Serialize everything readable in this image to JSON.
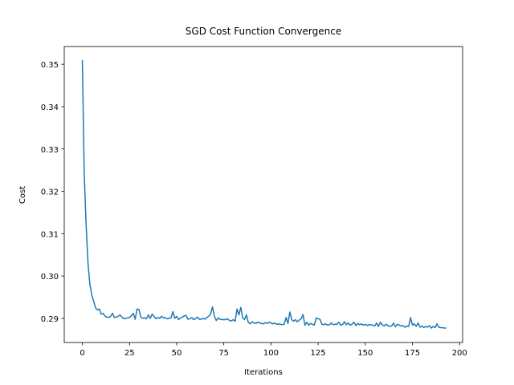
{
  "chart_data": {
    "type": "line",
    "title": "SGD Cost Function Convergence",
    "x_label": "Iterations",
    "y_label": "Cost",
    "series": [
      {
        "color": "#1f77b4",
        "values": [
          0.351,
          0.324,
          0.312,
          0.303,
          0.298,
          0.2955,
          0.294,
          0.2925,
          0.292,
          0.2922,
          0.291,
          0.2912,
          0.2905,
          0.2903,
          0.2902,
          0.2905,
          0.2912,
          0.2902,
          0.2903,
          0.2905,
          0.2908,
          0.2903,
          0.2899,
          0.29,
          0.2901,
          0.2902,
          0.2906,
          0.2912,
          0.2898,
          0.2922,
          0.2921,
          0.2903,
          0.29,
          0.2901,
          0.2899,
          0.2908,
          0.29,
          0.291,
          0.2905,
          0.2899,
          0.2902,
          0.29,
          0.2905,
          0.2901,
          0.2902,
          0.2899,
          0.29,
          0.2901,
          0.2916,
          0.29,
          0.2905,
          0.2897,
          0.2901,
          0.2903,
          0.2906,
          0.2907,
          0.2898,
          0.2899,
          0.2902,
          0.2897,
          0.2899,
          0.2903,
          0.2898,
          0.2898,
          0.29,
          0.2898,
          0.2902,
          0.2905,
          0.291,
          0.2927,
          0.2905,
          0.2895,
          0.2901,
          0.2898,
          0.2897,
          0.2897,
          0.2897,
          0.2899,
          0.2895,
          0.2894,
          0.2897,
          0.2893,
          0.2922,
          0.2908,
          0.2926,
          0.2901,
          0.2897,
          0.2908,
          0.289,
          0.2887,
          0.2892,
          0.2889,
          0.2888,
          0.2891,
          0.2889,
          0.2888,
          0.2887,
          0.289,
          0.2888,
          0.2891,
          0.2889,
          0.2887,
          0.2889,
          0.2886,
          0.2887,
          0.2886,
          0.2885,
          0.2886,
          0.2902,
          0.2888,
          0.2915,
          0.2897,
          0.2893,
          0.2897,
          0.2892,
          0.2896,
          0.2899,
          0.2909,
          0.2884,
          0.2891,
          0.2884,
          0.2888,
          0.2886,
          0.2884,
          0.2901,
          0.2899,
          0.2898,
          0.2886,
          0.2885,
          0.2887,
          0.2884,
          0.2885,
          0.2889,
          0.2885,
          0.2886,
          0.2886,
          0.2891,
          0.2884,
          0.2886,
          0.2892,
          0.2885,
          0.2889,
          0.2884,
          0.2886,
          0.2891,
          0.2883,
          0.2888,
          0.2885,
          0.2887,
          0.2884,
          0.2886,
          0.2883,
          0.2885,
          0.2885,
          0.2884,
          0.2882,
          0.2889,
          0.2881,
          0.2891,
          0.2885,
          0.2882,
          0.2886,
          0.2883,
          0.2881,
          0.2882,
          0.2889,
          0.288,
          0.2886,
          0.2884,
          0.2882,
          0.2883,
          0.2879,
          0.2882,
          0.2881,
          0.2902,
          0.2884,
          0.2887,
          0.2881,
          0.2889,
          0.2879,
          0.2882,
          0.2878,
          0.2881,
          0.2879,
          0.2883,
          0.2877,
          0.2881,
          0.2878,
          0.2887,
          0.2879,
          0.2878,
          0.2878,
          0.2877,
          0.2877
        ]
      }
    ],
    "xlim": [
      -9.6,
      201.6
    ],
    "ylim": [
      0.2843,
      0.3542
    ],
    "xticks": [
      0,
      25,
      50,
      75,
      100,
      125,
      150,
      175,
      200
    ],
    "yticks": [
      {
        "value": 0.29,
        "label": "0.29"
      },
      {
        "value": 0.3,
        "label": "0.30"
      },
      0.31,
      0.32,
      0.33,
      0.34,
      0.35
    ]
  }
}
